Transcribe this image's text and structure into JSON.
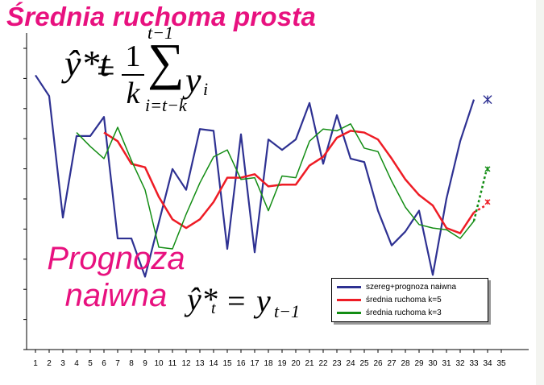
{
  "slide": {
    "title": "Średnia ruchoma prosta",
    "naive_label_line1": "Prognoza",
    "naive_label_line2": "naiwna"
  },
  "formula_sma": {
    "lhs": "ŷ*t",
    "fraction_numerator": "1",
    "fraction_denominator": "k",
    "sum_symbol": "∑",
    "sum_upper": "t−1",
    "sum_lower": "i=t−k",
    "summand": "y",
    "summand_index": "i"
  },
  "formula_naive": {
    "lhs_base": "ŷ*",
    "lhs_sub": "t",
    "equals": "=",
    "rhs_base": "y",
    "rhs_sub": "t−1"
  },
  "colors": {
    "title": "#e8117f",
    "series_naive": "#2e3192",
    "series_k5": "#ee1c25",
    "series_k3": "#138d14"
  },
  "chart_data": {
    "type": "line",
    "x": [
      1,
      2,
      3,
      4,
      5,
      6,
      7,
      8,
      9,
      10,
      11,
      12,
      13,
      14,
      15,
      16,
      17,
      18,
      19,
      20,
      21,
      22,
      23,
      24,
      25,
      26,
      27,
      28,
      29,
      30,
      31,
      32,
      33,
      34,
      35
    ],
    "xlim": [
      1,
      35
    ],
    "ylim": [
      0,
      18
    ],
    "grid": false,
    "legend_position": "bottom-right",
    "series": [
      {
        "name": "szereg+prognoza naiwna",
        "color": "#2e3192",
        "values": [
          15.8,
          14.6,
          7.6,
          12.3,
          12.3,
          13.4,
          6.4,
          6.4,
          4.2,
          7.3,
          10.4,
          9.2,
          12.7,
          12.6,
          5.8,
          12.4,
          5.6,
          12.1,
          11.5,
          12.1,
          14.2,
          10.7,
          13.5,
          11.0,
          10.8,
          8.0,
          6.0,
          6.8,
          8.0,
          4.3,
          8.7,
          12.0,
          14.4,
          14.4,
          null
        ],
        "forecast_index": 34
      },
      {
        "name": "średnia ruchoma k=5",
        "color": "#ee1c25",
        "values": [
          null,
          null,
          null,
          null,
          null,
          12.5,
          12.0,
          10.7,
          10.5,
          8.8,
          7.5,
          7.0,
          7.5,
          8.5,
          9.9,
          9.9,
          10.1,
          9.4,
          9.5,
          9.5,
          10.6,
          11.1,
          12.2,
          12.6,
          12.5,
          12.1,
          11.0,
          9.8,
          8.9,
          8.3,
          7.0,
          6.7,
          7.9,
          8.5,
          null
        ],
        "forecast_index": 34
      },
      {
        "name": "średnia ruchoma k=3",
        "color": "#138d14",
        "values": [
          null,
          null,
          null,
          12.5,
          11.7,
          11.0,
          12.8,
          10.9,
          9.2,
          5.9,
          5.8,
          7.8,
          9.6,
          11.1,
          11.5,
          9.8,
          9.9,
          8.0,
          10.0,
          9.9,
          12.0,
          12.7,
          12.6,
          13.0,
          11.6,
          11.4,
          9.7,
          8.2,
          7.2,
          7.0,
          6.9,
          6.4,
          7.4,
          10.4,
          null
        ],
        "forecast_index": 34
      }
    ]
  }
}
